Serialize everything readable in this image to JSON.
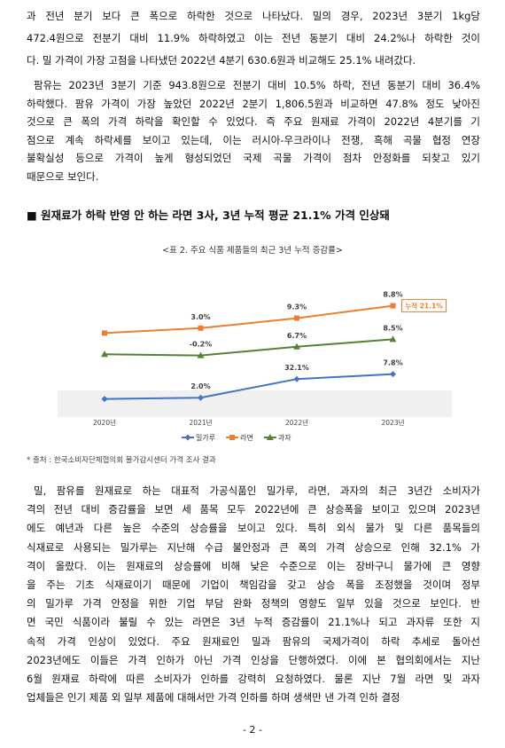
{
  "paragraphs_top": [
    [
      "과 전년 분기 보다 큰 폭으로 하락한 것으로 나타났다. 밀의 경우, 2023년 3분기 1kg당",
      "472.4원으로 전분기 대비 11.9% 하락하였고 이는 전년 동분기 대비 24.2%나 하락한 것이",
      "다. 밀 가격이 가장 고점을 나타냈던 2022년 4분기 630.6원과 비교해도 25.1% 내려갔다."
    ],
    [
      "팜유는 2023년 3분기 기준 943.8원으로 전분기 대비 10.5% 하락, 전년 동분기 대비 36.4%",
      "하락했다. 팜유 가격이 가장 높았던 2022년 2분기 1,806.5원과 비교하면 47.8% 정도 낮아진",
      "것으로 큰 폭의 가격 하락을 확인할 수 있었다. 즉 주요 원재료 가격이 2022년 4분기를 기",
      "점으로 계속 하락세를 보이고 있는데, 이는 러시아-우크라이나 전쟁, 흑해 곡물 협정 연장",
      "불확실성 등으로 가격이 높게 형성되었던 국제 곡물 가격이 점차 안정화를 되찾고 있기",
      "때문으로 보인다."
    ]
  ],
  "heading": "■ 원재료가 하락 반영 안 하는 라면 3사, 3년 누적 평균 21.1% 가격 인상돼",
  "chart_data": {
    "type": "line",
    "title": "<표 2. 주요 식품 제품들의 최근 3년 누적 증감률>",
    "categories": [
      "2020년",
      "2021년",
      "2022년",
      "2023년"
    ],
    "ylim": [
      0,
      100
    ],
    "annotation": "누적 21.1%",
    "series": [
      {
        "name": "밀가루",
        "color": "#4472c4",
        "marker": "diamond",
        "values": [
          11,
          12,
          27,
          31
        ],
        "point_labels": [
          null,
          "2.0%",
          "32.1%",
          "7.8%"
        ]
      },
      {
        "name": "라면",
        "color": "#ed7d31",
        "marker": "square",
        "values": [
          64,
          68,
          76,
          86
        ],
        "point_labels": [
          null,
          "3.0%",
          "9.3%",
          "8.8%"
        ]
      },
      {
        "name": "과자",
        "color": "#548235",
        "marker": "triangle",
        "values": [
          47,
          46,
          53,
          59
        ],
        "point_labels": [
          null,
          "-0.2%",
          "6.7%",
          "8.5%"
        ]
      }
    ]
  },
  "source": "* 출처 : 한국소비자단체협의회 물가감시센터 가격 조사 결과",
  "paragraphs_bottom": [
    [
      "밀, 팜유를 원재료로 하는 대표적 가공식품인 밀가루, 라면, 과자의 최근 3년간 소비자가",
      "격의 전년 대비 증감률을 보면 세 품목 모두 2022년에 큰 상승폭을 보이고 있으며 2023년",
      "에도 예년과 다른 높은 수준의 상승률을 보이고 있다. 특히 외식 물가 및 다른 품목들의",
      "식재료로 사용되는 밀가루는 지난해 수급 불안정과 큰 폭의 가격 상승으로 인해 32.1% 가",
      "격이 올랐다. 이는 원재료의 상승률에 비해 낮은 수준으로 이는 장바구니 물가에 큰 영향",
      "을 주는 기초 식재료이기 때문에 기업이 책임감을 갖고 상승 폭을 조정했을 것이며 정부",
      "의 밀가루 가격 안정을 위한 기업 부담 완화 정책의 영향도 일부 있을 것으로 보인다. 반",
      "면 국민 식품이라 불릴 수 있는 라면은 3년 누적 증감률이 21.1%나 되고 과자류 또한 지",
      "속적 가격 인상이 있었다. 주요 원재료인 밀과 팜유의 국제가격이 하락 추세로 돌아선",
      "2023년에도 이들은 가격 인하가 아닌 가격 인상을 단행하였다. 이에 본 협의회에서는 지난",
      "6월 원재료 하락에 따른 소비자가 인하를 강력히 요청하였다. 물론 지난 7월 라면 및 과자",
      "업체들은 인기 제품 외 일부 제품에 대해서만 가격 인하를 하며 생색만 낸 가격 인하 결정"
    ]
  ],
  "page_number": "- 2 -"
}
